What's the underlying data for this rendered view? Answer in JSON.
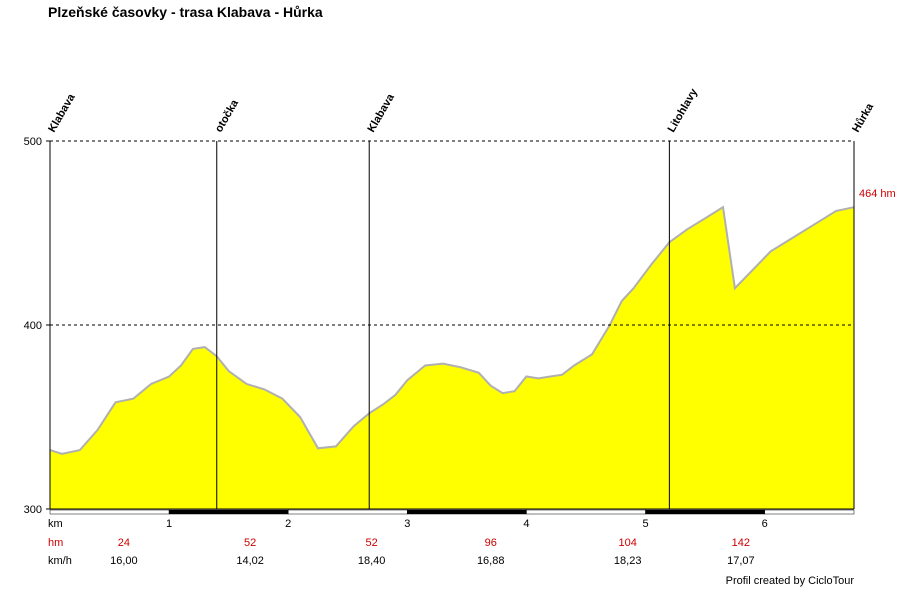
{
  "chart_data": {
    "type": "area",
    "title": "Plzeňské časovky - trasa Klabava - Hůrka",
    "xlabel": "km",
    "ylabel": "",
    "xlim": [
      0,
      6.75
    ],
    "ylim": [
      300,
      500
    ],
    "y_ticks": [
      "500",
      "400",
      "300"
    ],
    "x_ticks": [
      "1",
      "2",
      "3",
      "4",
      "5",
      "6"
    ],
    "gridlines_y": [
      400,
      500
    ],
    "fill_color": "#ffff00",
    "line_color": "#b0b0b0",
    "series": [
      {
        "x": [
          0,
          0.1,
          0.25,
          0.4,
          0.55,
          0.7,
          0.85,
          1.0,
          1.1,
          1.2,
          1.3,
          1.4,
          1.5,
          1.65,
          1.8,
          1.95,
          2.1,
          2.25,
          2.4,
          2.55,
          2.68,
          2.8,
          2.9,
          3.0,
          3.15,
          3.3,
          3.45,
          3.6,
          3.7,
          3.8,
          3.9,
          4.0,
          4.1,
          4.2,
          4.3,
          4.4,
          4.55,
          4.7,
          4.8,
          4.9,
          5.05,
          5.2,
          5.35,
          5.5,
          5.65,
          5.75,
          5.9,
          6.05,
          6.2,
          6.35,
          6.5,
          6.6,
          6.75
        ],
        "y": [
          332,
          330,
          332,
          343,
          358,
          360,
          368,
          372,
          378,
          387,
          388,
          383,
          375,
          368,
          365,
          360,
          350,
          333,
          334,
          345,
          352,
          357,
          362,
          370,
          378,
          379,
          377,
          374,
          367,
          363,
          364,
          372,
          371,
          372,
          373,
          378,
          384,
          400,
          413,
          420,
          433,
          445,
          452,
          458,
          464,
          420,
          430,
          440,
          446,
          452,
          458,
          462,
          464
        ]
      }
    ],
    "waypoints": [
      {
        "km": 0,
        "name": "Klabava"
      },
      {
        "km": 1.4,
        "name": "otočka"
      },
      {
        "km": 2.68,
        "name": "Klabava"
      },
      {
        "km": 5.2,
        "name": "Litohlavy"
      },
      {
        "km": 6.75,
        "name": "Hůrka"
      }
    ],
    "end_label": "464 hm",
    "rows": {
      "km_label": "km",
      "hm_label": "hm",
      "kmh_label": "km/h",
      "hm_values": [
        "24",
        "52",
        "52",
        "96",
        "104",
        "142"
      ],
      "kmh_values": [
        "16,00",
        "14,02",
        "18,40",
        "16,88",
        "18,23",
        "17,07"
      ]
    }
  },
  "credit": "Profil created by CicloTour"
}
